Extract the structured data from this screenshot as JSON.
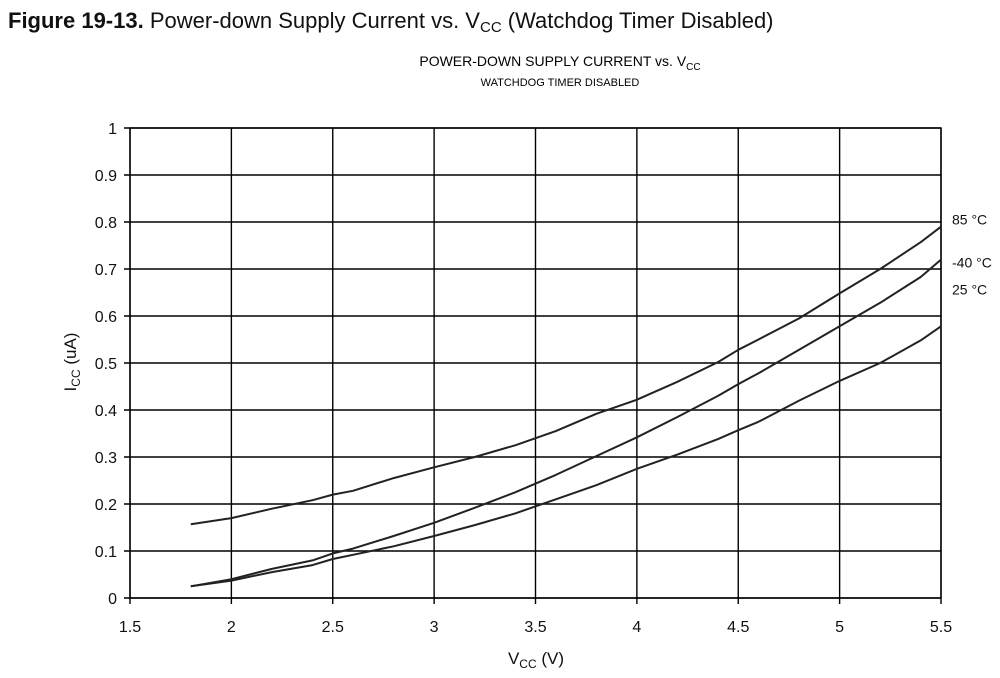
{
  "figure": {
    "label": "Figure 19-13.",
    "caption_main": "Power-down Supply Current vs. V",
    "caption_sub": "CC",
    "caption_end": "(Watchdog Timer Disabled)"
  },
  "chart_data": {
    "type": "line",
    "title_main": "POWER-DOWN SUPPLY CURRENT vs. V",
    "title_sub": "CC",
    "subtitle": "WATCHDOG TIMER DISABLED",
    "xlabel_main": "V",
    "xlabel_sub": "CC",
    "xlabel_unit": " (V)",
    "ylabel_main": "I",
    "ylabel_sub": "CC",
    "ylabel_unit": " (uA)",
    "xlim": [
      1.5,
      5.5
    ],
    "ylim": [
      0,
      1
    ],
    "grid": true,
    "x_ticks": [
      "1.5",
      "2",
      "2.5",
      "3",
      "3.5",
      "4",
      "4.5",
      "5",
      "5.5"
    ],
    "y_ticks": [
      "0",
      "0.1",
      "0.2",
      "0.3",
      "0.4",
      "0.5",
      "0.6",
      "0.7",
      "0.8",
      "0.9",
      "1"
    ],
    "x": [
      1.8,
      2.0,
      2.2,
      2.4,
      2.5,
      2.6,
      2.8,
      3.0,
      3.2,
      3.4,
      3.6,
      3.8,
      4.0,
      4.2,
      4.4,
      4.5,
      4.6,
      4.8,
      5.0,
      5.2,
      5.4,
      5.5
    ],
    "series": [
      {
        "name": "85 °C",
        "values": [
          0.157,
          0.17,
          0.19,
          0.208,
          0.22,
          0.228,
          0.255,
          0.278,
          0.3,
          0.325,
          0.355,
          0.392,
          0.422,
          0.46,
          0.502,
          0.528,
          0.55,
          0.595,
          0.648,
          0.7,
          0.757,
          0.79
        ]
      },
      {
        "name": "-40 °C",
        "values": [
          0.025,
          0.04,
          0.062,
          0.08,
          0.095,
          0.105,
          0.132,
          0.16,
          0.192,
          0.225,
          0.262,
          0.302,
          0.342,
          0.385,
          0.43,
          0.455,
          0.478,
          0.528,
          0.578,
          0.628,
          0.683,
          0.72
        ]
      },
      {
        "name": "25 °C",
        "values": [
          0.025,
          0.037,
          0.055,
          0.07,
          0.083,
          0.092,
          0.11,
          0.132,
          0.155,
          0.18,
          0.21,
          0.24,
          0.275,
          0.305,
          0.338,
          0.357,
          0.375,
          0.42,
          0.462,
          0.5,
          0.548,
          0.578
        ]
      }
    ]
  }
}
